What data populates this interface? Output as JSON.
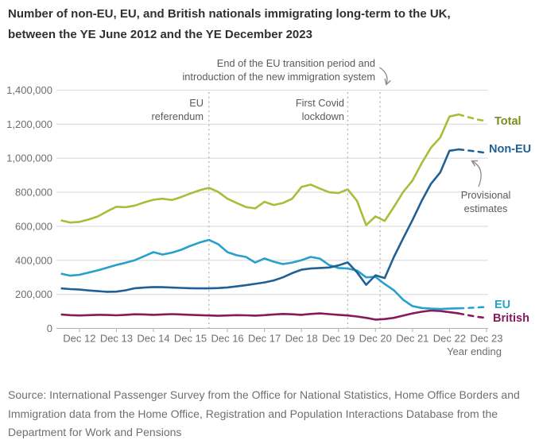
{
  "page": {
    "title": "Number of non-EU, EU, and British nationals immigrating long-term to the UK, between the YE June 2012 and the YE December 2023",
    "source": "Source: International Passenger Survey from the Office for National Statistics, Home Office Borders and Immigration data from the Home Office, Registration and Population Interactions Database from the Department for Work and Pensions"
  },
  "chart_data": {
    "type": "line",
    "title": "Number of non-EU, EU, and British nationals immigrating long-term to the UK, between the YE June 2012 and the YE December 2023",
    "x_axis_label": "Year ending",
    "x_tick_labels": [
      "Dec 12",
      "Dec 13",
      "Dec 14",
      "Dec 15",
      "Dec 16",
      "Dec 17",
      "Dec 18",
      "Dec 19",
      "Dec 20",
      "Dec 21",
      "Dec 22",
      "Dec 23"
    ],
    "y_tick_labels": [
      "0",
      "200,000",
      "400,000",
      "600,000",
      "800,000",
      "1,000,000",
      "1,200,000",
      "1,400,000"
    ],
    "y_tick_step": 200000,
    "ylim": [
      0,
      1400000
    ],
    "grid": "horizontal",
    "value_unit": "thousands of people, year-ending totals",
    "x_points": [
      "YE Jun 2012",
      "YE Sep 2012",
      "YE Dec 2012",
      "YE Mar 2013",
      "YE Jun 2013",
      "YE Sep 2013",
      "YE Dec 2013",
      "YE Mar 2014",
      "YE Jun 2014",
      "YE Sep 2014",
      "YE Dec 2014",
      "YE Mar 2015",
      "YE Jun 2015",
      "YE Sep 2015",
      "YE Dec 2015",
      "YE Mar 2016",
      "YE Jun 2016",
      "YE Sep 2016",
      "YE Dec 2016",
      "YE Mar 2017",
      "YE Jun 2017",
      "YE Sep 2017",
      "YE Dec 2017",
      "YE Mar 2018",
      "YE Jun 2018",
      "YE Sep 2018",
      "YE Dec 2018",
      "YE Mar 2019",
      "YE Jun 2019",
      "YE Sep 2019",
      "YE Dec 2019",
      "YE Mar 2020",
      "YE Jun 2020",
      "YE Sep 2020",
      "YE Dec 2020",
      "YE Mar 2021",
      "YE Jun 2021",
      "YE Sep 2021",
      "YE Dec 2021",
      "YE Mar 2022",
      "YE Jun 2022",
      "YE Sep 2022",
      "YE Dec 2022",
      "YE Mar 2023",
      "YE Jun 2023",
      "YE Sep 2023",
      "YE Dec 2023"
    ],
    "series": [
      {
        "name": "Total",
        "color": "#a8bd3a",
        "label_color": "#7d8b21",
        "values": [
          635,
          622,
          626,
          640,
          658,
          688,
          715,
          712,
          722,
          740,
          756,
          762,
          754,
          772,
          793,
          812,
          826,
          802,
          762,
          737,
          713,
          705,
          744,
          725,
          737,
          762,
          831,
          845,
          822,
          800,
          795,
          817,
          750,
          607,
          658,
          632,
          714,
          802,
          868,
          971,
          1062,
          1121,
          1245,
          1257,
          1242,
          1228,
          1218
        ]
      },
      {
        "name": "Non-EU",
        "color": "#206095",
        "label_color": "#206095",
        "values": [
          235,
          231,
          228,
          223,
          219,
          215,
          216,
          224,
          236,
          240,
          243,
          242,
          240,
          238,
          236,
          235,
          235,
          237,
          241,
          247,
          254,
          262,
          270,
          282,
          300,
          325,
          345,
          352,
          355,
          358,
          370,
          388,
          330,
          256,
          312,
          296,
          420,
          530,
          636,
          750,
          850,
          916,
          1044,
          1052,
          1046,
          1039,
          1031
        ]
      },
      {
        "name": "EU",
        "color": "#27a0cc",
        "label_color": "#27a0cc",
        "values": [
          322,
          310,
          315,
          328,
          341,
          357,
          373,
          386,
          401,
          424,
          448,
          434,
          445,
          462,
          485,
          505,
          520,
          495,
          448,
          430,
          420,
          387,
          411,
          392,
          378,
          387,
          401,
          420,
          410,
          372,
          355,
          352,
          340,
          300,
          303,
          261,
          224,
          168,
          131,
          120,
          116,
          114,
          116,
          118,
          120,
          123,
          126
        ]
      },
      {
        "name": "British",
        "color": "#871a5b",
        "label_color": "#871a5b",
        "values": [
          82,
          78,
          76,
          78,
          80,
          79,
          77,
          80,
          83,
          82,
          80,
          82,
          84,
          82,
          80,
          78,
          76,
          74,
          76,
          78,
          77,
          75,
          78,
          82,
          85,
          83,
          80,
          85,
          88,
          84,
          80,
          76,
          70,
          62,
          52,
          55,
          62,
          75,
          88,
          98,
          105,
          102,
          95,
          88,
          78,
          68,
          61
        ]
      }
    ],
    "events": [
      {
        "label": "EU referendum",
        "label_lines": [
          "EU",
          "referendum"
        ],
        "index": 16
      },
      {
        "label": "First Covid lockdown",
        "label_lines": [
          "First Covid",
          "lockdown"
        ],
        "index": 31
      },
      {
        "label": "End of the EU transition period and introduction of the new immigration system",
        "label_lines": [
          "End of the EU transition period and",
          "introduction of the new immigration system"
        ],
        "index": 34.5
      }
    ],
    "provisional": {
      "label": "Provisional estimates",
      "label_lines": [
        "Provisional",
        "estimates"
      ],
      "from_index": 43
    },
    "legend_position": "labels at right ends of lines"
  }
}
